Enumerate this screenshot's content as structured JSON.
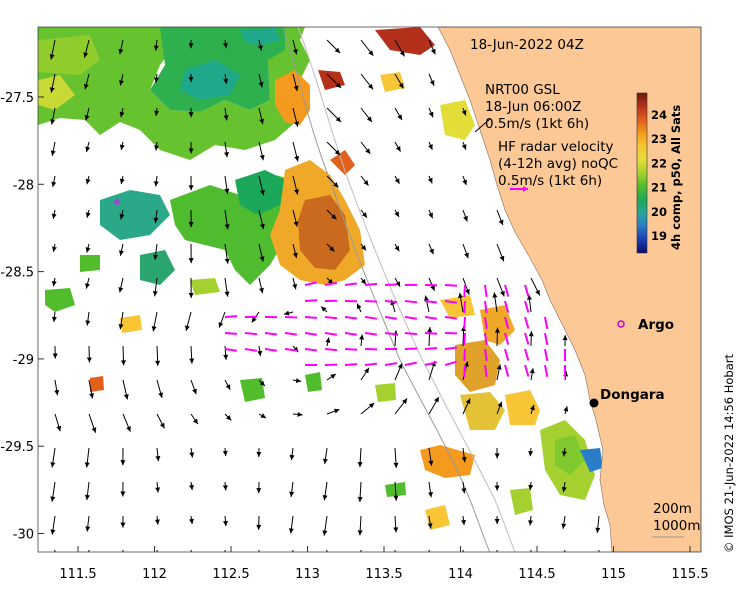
{
  "title_date": "18-Jun-2022 04Z",
  "model_label": "NRT00 GSL",
  "model_time": "18-Jun 06:00Z",
  "model_scale": "0.5m/s (1kt 6h)",
  "radar_label": "HF radar velocity",
  "radar_avg": "(4-12h avg) noQC",
  "radar_scale": "0.5m/s (1kt 6h)",
  "places": [
    {
      "name": "Argo",
      "lon": 115.12,
      "lat": -28.83
    },
    {
      "name": "Dongara",
      "lon": 114.93,
      "lat": -29.25
    }
  ],
  "contours": [
    "200m",
    "1000m"
  ],
  "credit": "© IMOS 21-Jun-2022 14:56 Hobart",
  "colorbar": {
    "label": "4h comp, p50, All Sats",
    "ticks": [
      "24",
      "23",
      "22",
      "21",
      "20",
      "19"
    ],
    "colors": [
      "#6b1a06",
      "#b3301a",
      "#e0601c",
      "#f39a1f",
      "#f7c535",
      "#e3dd38",
      "#a4d12f",
      "#52bd2c",
      "#1ba85a",
      "#2aa59c",
      "#2b7dc7",
      "#1d3bb0",
      "#0a0d6e"
    ]
  },
  "axes": {
    "x_ticks": [
      "111.5",
      "112",
      "112.5",
      "113",
      "113.5",
      "114",
      "114.5",
      "115",
      "115.5"
    ],
    "y_ticks": [
      "-27.5",
      "-28",
      "-28.5",
      "-29",
      "-29.5",
      "-30"
    ]
  },
  "colors": {
    "land": "#fbc896",
    "radar": "#ff00ff",
    "map_bg": "#ffffff"
  }
}
